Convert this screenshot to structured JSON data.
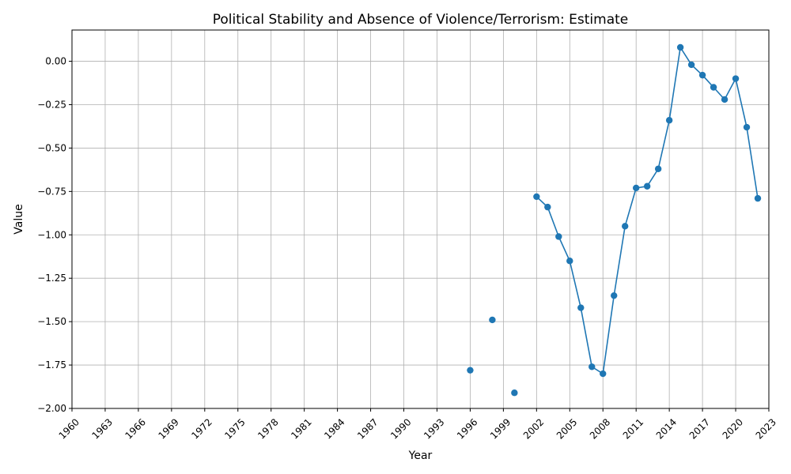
{
  "chart_data": {
    "type": "line",
    "title": "Political Stability and Absence of Violence/Terrorism: Estimate",
    "xlabel": "Year",
    "ylabel": "Value",
    "xlim": [
      1960,
      2023
    ],
    "ylim": [
      -2.0,
      0.18
    ],
    "x_ticks": [
      "1960",
      "1963",
      "1966",
      "1969",
      "1972",
      "1975",
      "1978",
      "1981",
      "1984",
      "1987",
      "1990",
      "1993",
      "1996",
      "1999",
      "2002",
      "2005",
      "2008",
      "2011",
      "2014",
      "2017",
      "2020",
      "2023"
    ],
    "y_ticks": [
      "−2.00",
      "−1.75",
      "−1.50",
      "−1.25",
      "−1.00",
      "−0.75",
      "−0.50",
      "−0.25",
      "0.00"
    ],
    "grid": true,
    "color": "#1f77b4",
    "points": [
      {
        "x": 1996,
        "y": -1.78
      },
      {
        "x": 1998,
        "y": -1.49
      },
      {
        "x": 2000,
        "y": -1.91
      },
      {
        "x": 2002,
        "y": -0.78
      },
      {
        "x": 2003,
        "y": -0.84
      },
      {
        "x": 2004,
        "y": -1.01
      },
      {
        "x": 2005,
        "y": -1.15
      },
      {
        "x": 2006,
        "y": -1.42
      },
      {
        "x": 2007,
        "y": -1.76
      },
      {
        "x": 2008,
        "y": -1.8
      },
      {
        "x": 2009,
        "y": -1.35
      },
      {
        "x": 2010,
        "y": -0.95
      },
      {
        "x": 2011,
        "y": -0.73
      },
      {
        "x": 2012,
        "y": -0.72
      },
      {
        "x": 2013,
        "y": -0.62
      },
      {
        "x": 2014,
        "y": -0.34
      },
      {
        "x": 2015,
        "y": 0.08
      },
      {
        "x": 2016,
        "y": -0.02
      },
      {
        "x": 2017,
        "y": -0.08
      },
      {
        "x": 2018,
        "y": -0.15
      },
      {
        "x": 2019,
        "y": -0.22
      },
      {
        "x": 2020,
        "y": -0.1
      },
      {
        "x": 2021,
        "y": -0.38
      },
      {
        "x": 2022,
        "y": -0.79
      }
    ]
  }
}
